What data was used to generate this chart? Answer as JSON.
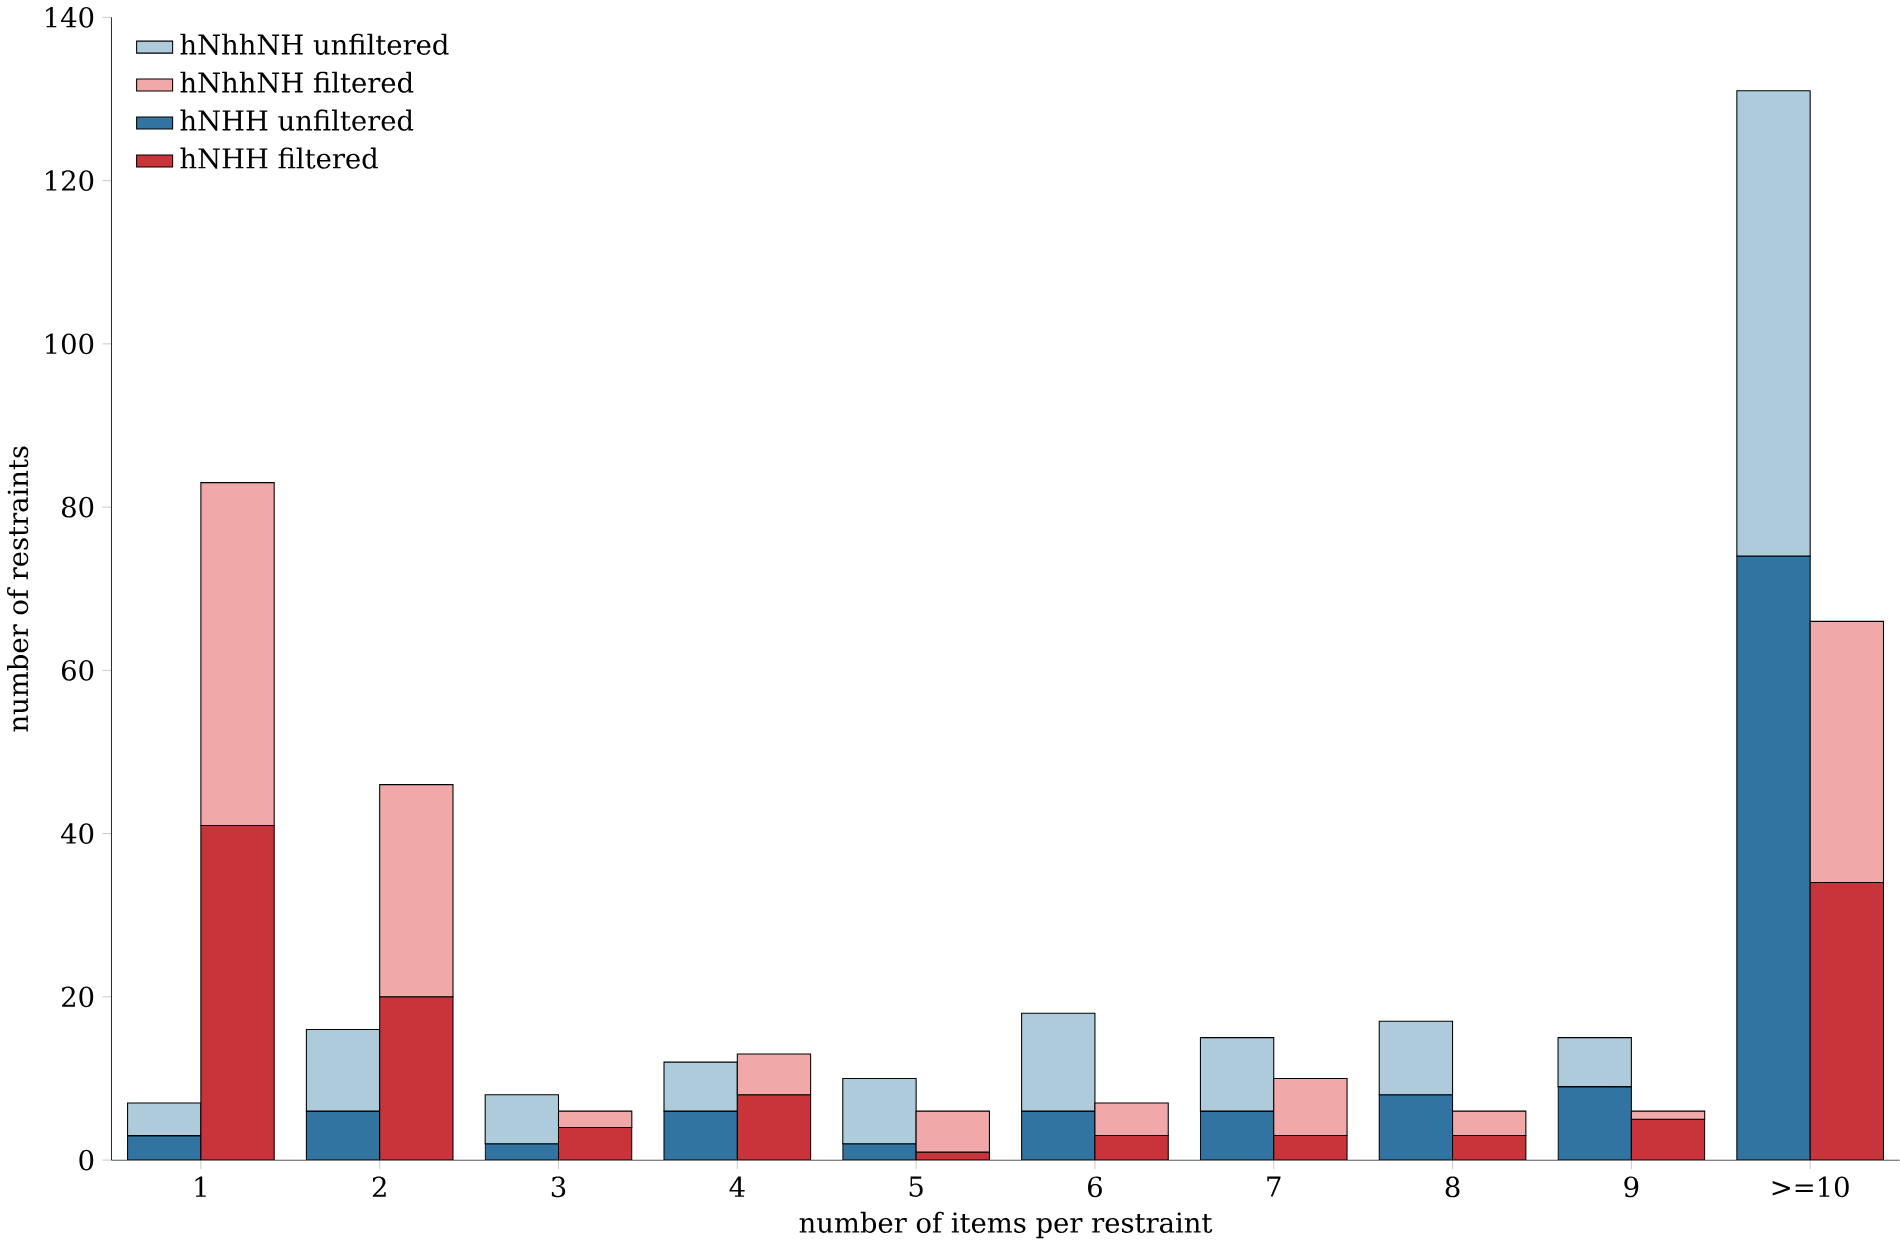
{
  "chart_data": [
    {
      "type": "bar",
      "xlabel": "number of items per restraint",
      "ylabel": "number of restraints",
      "categories": [
        "1",
        "2",
        "3",
        "4",
        "5",
        "6",
        "7",
        "8",
        "9",
        ">=10"
      ],
      "series": [
        {
          "name": "hNHH unfiltered",
          "color": "#3274a1",
          "values": [
            3,
            6,
            2,
            6,
            2,
            6,
            6,
            8,
            9,
            74
          ]
        },
        {
          "name": "hNhhNH unfiltered",
          "color": "#aecbdc",
          "values": [
            4,
            10,
            6,
            6,
            8,
            12,
            9,
            9,
            6,
            57
          ]
        }
      ],
      "stacked": true,
      "ylim": [
        0,
        140
      ],
      "yticks": [
        0,
        20,
        40,
        60,
        80,
        100,
        120,
        140
      ],
      "legend": "top left"
    },
    {
      "type": "bar",
      "categories": [
        null,
        null,
        null,
        null,
        null,
        null,
        null,
        null,
        null,
        null
      ],
      "series": [
        {
          "name": "hNHH filtered",
          "color": "#c9343a",
          "values": [
            41,
            20,
            4,
            8,
            1,
            3,
            3,
            3,
            5,
            34
          ]
        },
        {
          "name": "hNhhNH filtered",
          "color": "#f0a8a8",
          "values": [
            42,
            26,
            2,
            5,
            5,
            4,
            7,
            3,
            1,
            32
          ]
        }
      ],
      "stacked": true,
      "ylim": [
        0,
        140
      ],
      "tick_labels": false,
      "legend": "top left"
    }
  ]
}
